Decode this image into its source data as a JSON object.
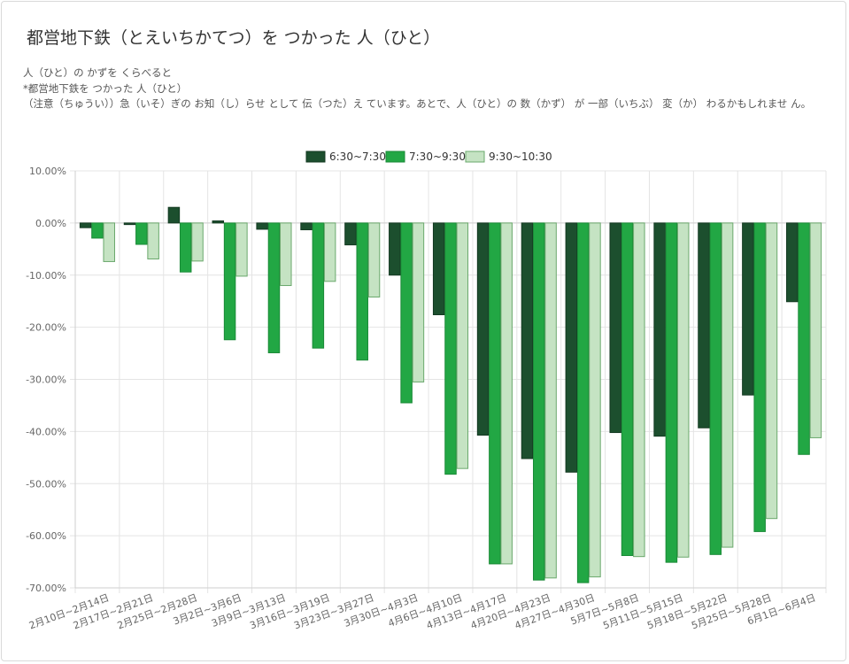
{
  "title": "都営地下鉄（とえいちかてつ）を つかった 人（ひと）",
  "description": [
    "人（ひと）の かずを くらべると",
    "*都営地下鉄を つかった 人（ひと）",
    "（注意（ちゅうい））急（いそ）ぎの お知（し）らせ として 伝（つた）え ています。あとで、人（ひと）の 数（かず） が 一部（いちぶ） 変（か） わるかもしれませ ん。"
  ],
  "colors": {
    "series1": "#1c4f2e",
    "series2": "#22a744",
    "series3": "#c5e3c3"
  },
  "chart_data": {
    "type": "bar",
    "categories": [
      "2月10日~2月14日",
      "2月17日~2月21日",
      "2月25日~2月28日",
      "3月2日~3月6日",
      "3月9日~3月13日",
      "3月16日~3月19日",
      "3月23日~3月27日",
      "3月30日~4月3日",
      "4月6日~4月10日",
      "4月13日~4月17日",
      "4月20日~4月23日",
      "4月27日~4月30日",
      "5月7日~5月8日",
      "5月11日~5月15日",
      "5月18日~5月22日",
      "5月25日~5月28日",
      "6月1日~6月4日"
    ],
    "series": [
      {
        "name": "6:30~7:30",
        "values": [
          -0.9,
          -0.3,
          3.0,
          0.4,
          -1.2,
          -1.3,
          -4.2,
          -10.0,
          -17.6,
          -40.7,
          -45.2,
          -47.8,
          -40.2,
          -40.9,
          -39.3,
          -33.0,
          -15.1
        ]
      },
      {
        "name": "7:30~9:30",
        "values": [
          -2.9,
          -4.1,
          -9.4,
          -22.4,
          -24.9,
          -24.0,
          -26.3,
          -34.5,
          -48.2,
          -65.4,
          -68.5,
          -69.0,
          -63.8,
          -65.1,
          -63.6,
          -59.2,
          -44.4
        ]
      },
      {
        "name": "9:30~10:30",
        "values": [
          -7.4,
          -6.9,
          -7.3,
          -10.2,
          -12.0,
          -11.2,
          -14.2,
          -30.5,
          -47.1,
          -65.4,
          -68.1,
          -67.9,
          -64.0,
          -64.1,
          -62.2,
          -56.7,
          -41.2
        ]
      }
    ],
    "yticks": [
      "10.00%",
      "0.00%",
      "-10.00%",
      "-20.00%",
      "-30.00%",
      "-40.00%",
      "-50.00%",
      "-60.00%",
      "-70.00%"
    ],
    "ylim": [
      -70,
      10
    ],
    "grid": true,
    "legend_position": "top"
  }
}
